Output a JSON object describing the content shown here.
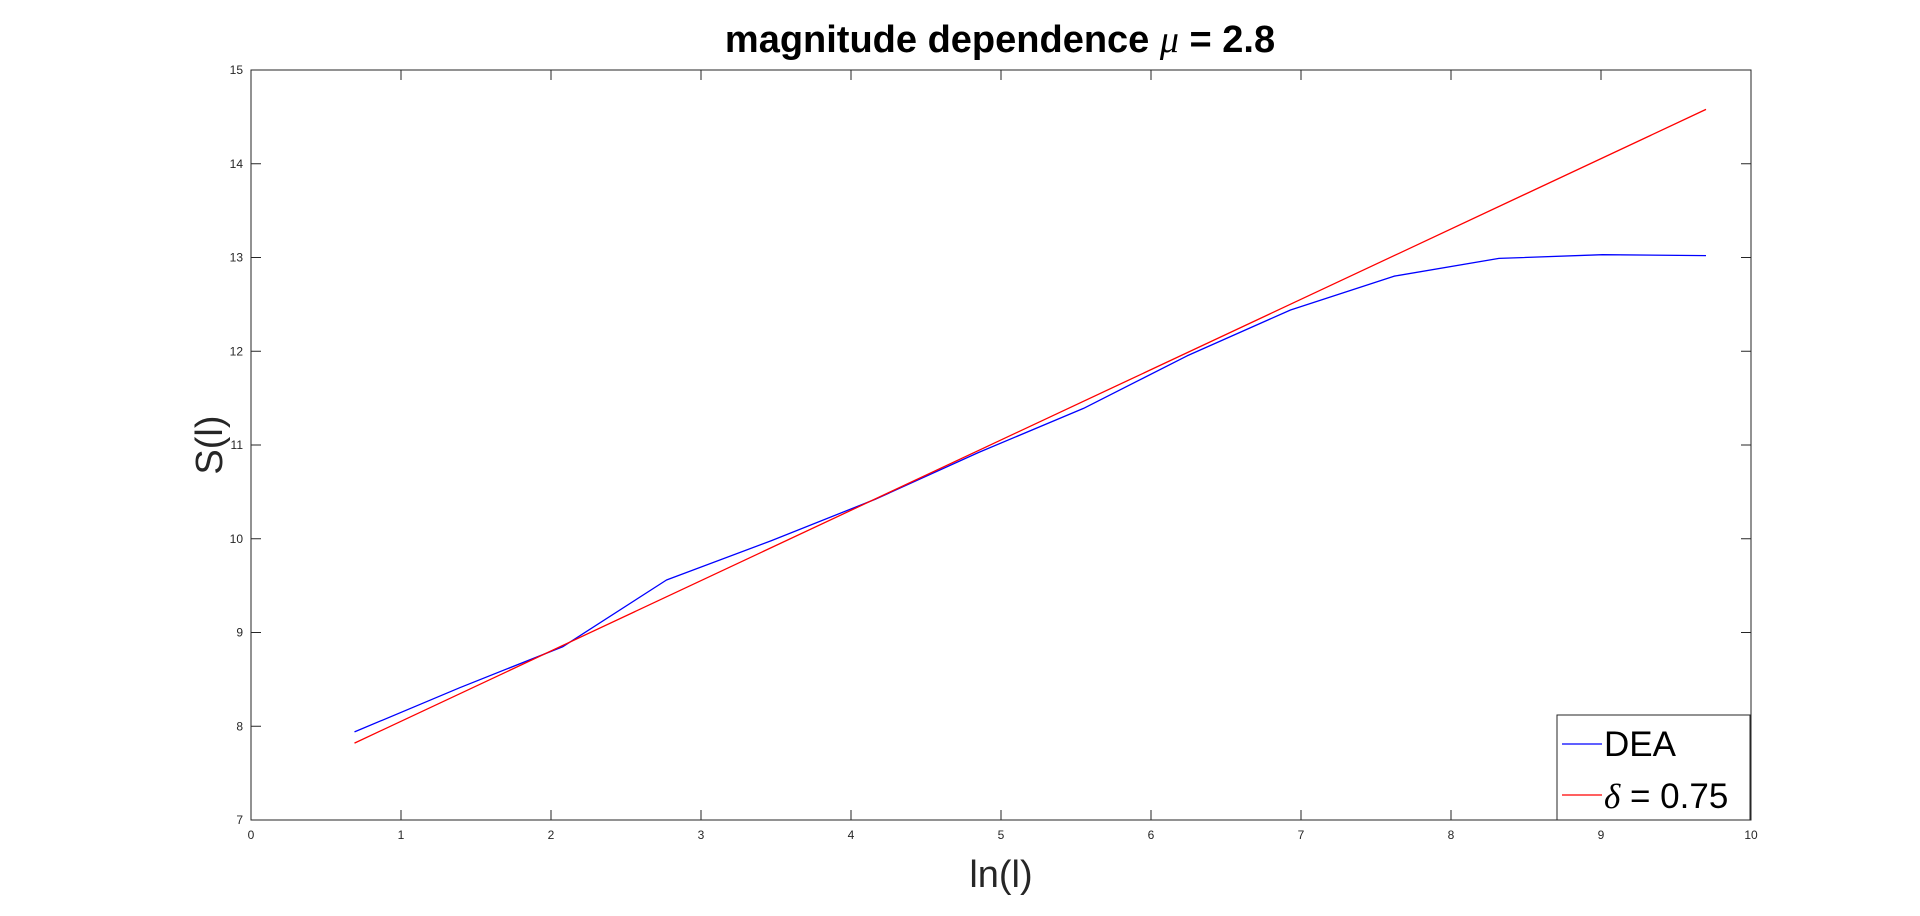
{
  "chart_data": {
    "type": "line",
    "title_prefix": "magnitude dependence ",
    "title_symbol": "μ",
    "title_suffix": " = 2.8",
    "xlabel": "ln(l)",
    "ylabel": "S(l)",
    "xlim": [
      0,
      10
    ],
    "ylim": [
      7,
      15
    ],
    "xticks": [
      0,
      1,
      2,
      3,
      4,
      5,
      6,
      7,
      8,
      9,
      10
    ],
    "yticks": [
      7,
      8,
      9,
      10,
      11,
      12,
      13,
      14,
      15
    ],
    "grid": false,
    "legend_position": "bottom-right",
    "series": [
      {
        "name": "DEA",
        "color": "#0000ff",
        "x": [
          0.69,
          1.39,
          2.08,
          2.77,
          3.47,
          4.16,
          4.85,
          5.55,
          6.24,
          6.93,
          7.62,
          8.32,
          9.01,
          9.7
        ],
        "y": [
          7.94,
          8.41,
          8.85,
          9.56,
          9.98,
          10.42,
          10.92,
          11.39,
          11.95,
          12.44,
          12.8,
          12.99,
          13.03,
          13.02
        ]
      },
      {
        "name_symbol": "δ",
        "name_suffix": " = 0.75",
        "color": "#ff0000",
        "x": [
          0.69,
          9.7
        ],
        "y": [
          7.82,
          14.58
        ]
      }
    ]
  }
}
